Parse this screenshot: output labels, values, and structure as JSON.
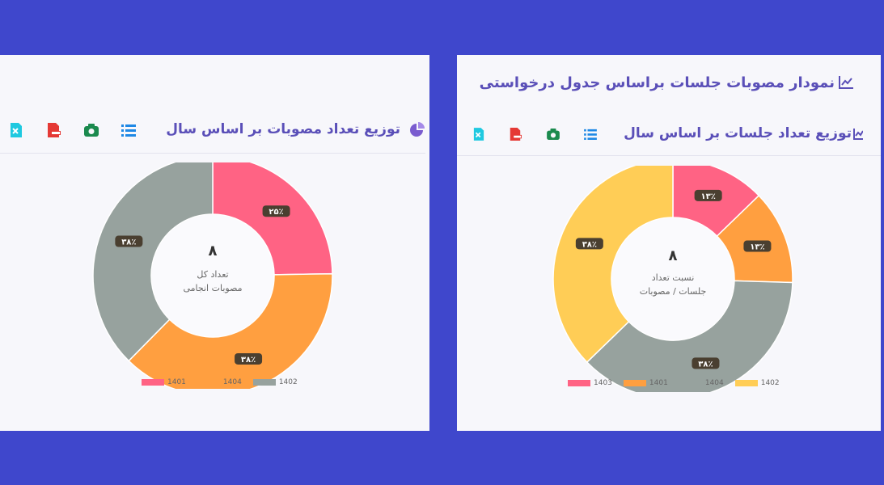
{
  "colors": {
    "background": "#3f47cc",
    "panel": "#f7f7fb",
    "title": "#5a4fb8",
    "pink": "#ff6384",
    "orange": "#ff9f40",
    "gray": "#97a29e",
    "yellow": "#ffcd56"
  },
  "left": {
    "card_title": "توزیع تعداد مصوبات بر اساس سال",
    "toolbar_icons": [
      "list-icon",
      "camera-icon",
      "pdf-icon",
      "excel-icon"
    ],
    "center_value": "۸",
    "center_caption_1": "تعداد کل",
    "center_caption_2": "مصوبات انجامی",
    "chart_data": {
      "type": "pie",
      "categories": [
        "1401",
        "1404",
        "1402"
      ],
      "values": [
        25,
        38,
        38
      ],
      "value_labels": [
        "۲۵٪",
        "۳۸٪",
        "۳۸٪"
      ],
      "colors": [
        "#ff6384",
        "#ff9f40",
        "#97a29e"
      ],
      "legend_placement": "bottom"
    }
  },
  "right": {
    "section_title": "نمودار مصوبات جلسات براساس جدول درخواستی",
    "card_title": "توزیع تعداد جلسات بر اساس سال",
    "toolbar_icons": [
      "list-icon",
      "camera-icon",
      "pdf-icon",
      "excel-icon"
    ],
    "center_value": "۸",
    "center_caption_1": "نسبت تعداد",
    "center_caption_2": "جلسات / مصوبات",
    "chart_data": {
      "type": "pie",
      "categories": [
        "1403",
        "1401",
        "1404",
        "1402"
      ],
      "values": [
        13,
        13,
        38,
        38
      ],
      "value_labels": [
        "۱۳٪",
        "۱۳٪",
        "۳۸٪",
        "۳۸٪"
      ],
      "colors": [
        "#ff6384",
        "#ff9f40",
        "#97a29e",
        "#ffcd56"
      ],
      "legend_placement": "bottom"
    }
  }
}
